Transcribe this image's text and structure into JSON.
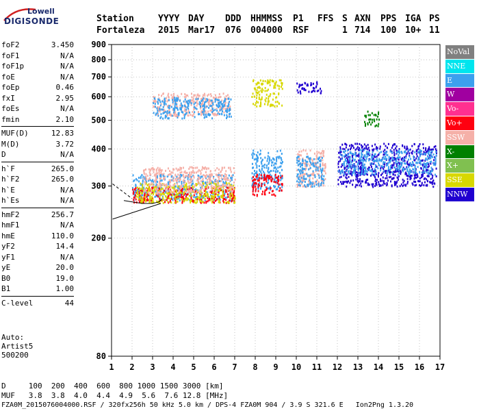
{
  "logo": {
    "line1": "Lowell",
    "line2": "DIGISONDE"
  },
  "header": {
    "labels": [
      "Station",
      "YYYY",
      "DAY",
      "DDD",
      "HHMMSS",
      "P1",
      "FFS",
      "S",
      "AXN",
      "PPS",
      "IGA",
      "PS"
    ],
    "values": [
      "Fortaleza",
      "2015",
      "Mar17",
      "076",
      "004000",
      "RSF",
      "1",
      "714",
      "100",
      "10+",
      "11"
    ]
  },
  "params_group1": [
    {
      "name": "foF2",
      "value": "3.450"
    },
    {
      "name": "foF1",
      "value": "N/A"
    },
    {
      "name": "foF1p",
      "value": "N/A"
    },
    {
      "name": "foE",
      "value": "N/A"
    },
    {
      "name": "foEp",
      "value": "0.46"
    },
    {
      "name": "fxI",
      "value": "2.95"
    },
    {
      "name": "foEs",
      "value": "N/A"
    },
    {
      "name": "fmin",
      "value": "2.10"
    }
  ],
  "params_group2": [
    {
      "name": "MUF(D)",
      "value": "12.83"
    },
    {
      "name": "M(D)",
      "value": "3.72"
    },
    {
      "name": "D",
      "value": "N/A"
    }
  ],
  "params_group3": [
    {
      "name": "h`F",
      "value": "265.0"
    },
    {
      "name": "h`F2",
      "value": "265.0"
    },
    {
      "name": "h`E",
      "value": "N/A"
    },
    {
      "name": "h`Es",
      "value": "N/A"
    }
  ],
  "params_group4": [
    {
      "name": "hmF2",
      "value": "256.7"
    },
    {
      "name": "hmF1",
      "value": "N/A"
    },
    {
      "name": "hmE",
      "value": "110.0"
    },
    {
      "name": "yF2",
      "value": "14.4"
    },
    {
      "name": "yF1",
      "value": "N/A"
    },
    {
      "name": "yE",
      "value": "20.0"
    },
    {
      "name": "B0",
      "value": "19.0"
    },
    {
      "name": "B1",
      "value": "1.00"
    }
  ],
  "params_group5": [
    {
      "name": "C-level",
      "value": "44"
    }
  ],
  "auto": {
    "line1": "Auto:",
    "line2": "Artist5",
    "line3": "500200"
  },
  "legend": [
    {
      "label": "NoVal",
      "color": "#808080"
    },
    {
      "label": "NNE",
      "color": "#00e5ee"
    },
    {
      "label": "E",
      "color": "#3ca0ee"
    },
    {
      "label": "W",
      "color": "#a000a0"
    },
    {
      "label": "Vo-",
      "color": "#ff3090"
    },
    {
      "label": "Vo+",
      "color": "#ff0010"
    },
    {
      "label": "SSW",
      "color": "#f5b0a8"
    },
    {
      "label": "X-",
      "color": "#008000"
    },
    {
      "label": "X+",
      "color": "#80c050"
    },
    {
      "label": "SSE",
      "color": "#d8d800"
    },
    {
      "label": "NNW",
      "color": "#2000d0"
    }
  ],
  "footer": {
    "d_row": "D     100  200  400  600  800 1000 1500 3000 [km]",
    "muf_row": "MUF   3.8  3.8  4.0  4.4  4.9  5.6  7.6 12.8 [MHz]",
    "file_row": "FZA0M_2015076004000.RSF / 320fx256h 50 kHz 5.0 km / DPS-4 FZA0M 904 / 3.9 S 321.6 E   Ion2Png 1.3.20"
  },
  "chart_data": {
    "type": "scatter",
    "title": "",
    "xlabel": "",
    "ylabel": "",
    "xlim": [
      1,
      17
    ],
    "ylim": [
      80,
      900
    ],
    "y_scale": "log",
    "x_ticks": [
      1,
      2,
      3,
      4,
      5,
      6,
      7,
      8,
      9,
      10,
      11,
      12,
      13,
      14,
      15,
      16,
      17
    ],
    "y_ticks": [
      80,
      200,
      300,
      400,
      500,
      600,
      700,
      800,
      900
    ],
    "grid": "dotted",
    "legend_position": "right",
    "bands": [
      {
        "series": "E",
        "x_from": 2.0,
        "x_to": 7.0,
        "y_from": 270,
        "y_to": 330
      },
      {
        "series": "Vo+",
        "x_from": 2.0,
        "x_to": 7.0,
        "y_from": 265,
        "y_to": 300
      },
      {
        "series": "SSE",
        "x_from": 2.2,
        "x_to": 7.0,
        "y_from": 265,
        "y_to": 310
      },
      {
        "series": "SSW",
        "x_from": 2.5,
        "x_to": 7.0,
        "y_from": 285,
        "y_to": 350
      },
      {
        "series": "E",
        "x_from": 7.8,
        "x_to": 9.3,
        "y_from": 290,
        "y_to": 400
      },
      {
        "series": "Vo+",
        "x_from": 7.8,
        "x_to": 9.3,
        "y_from": 280,
        "y_to": 330
      },
      {
        "series": "SSW",
        "x_from": 10.0,
        "x_to": 11.4,
        "y_from": 300,
        "y_to": 400
      },
      {
        "series": "E",
        "x_from": 10.0,
        "x_to": 11.4,
        "y_from": 300,
        "y_to": 380
      },
      {
        "series": "NNW",
        "x_from": 12.0,
        "x_to": 16.8,
        "y_from": 300,
        "y_to": 420
      },
      {
        "series": "E",
        "x_from": 12.0,
        "x_to": 16.8,
        "y_from": 330,
        "y_to": 400
      },
      {
        "series": "SSW",
        "x_from": 3.0,
        "x_to": 6.8,
        "y_from": 520,
        "y_to": 620
      },
      {
        "series": "E",
        "x_from": 3.0,
        "x_to": 6.8,
        "y_from": 510,
        "y_to": 600
      },
      {
        "series": "SSE",
        "x_from": 7.8,
        "x_to": 9.3,
        "y_from": 560,
        "y_to": 690
      },
      {
        "series": "NNW",
        "x_from": 10.0,
        "x_to": 11.2,
        "y_from": 620,
        "y_to": 680
      },
      {
        "series": "X-",
        "x_from": 13.3,
        "x_to": 14.0,
        "y_from": 480,
        "y_to": 540
      }
    ],
    "trace": {
      "name": "h`F trace",
      "x": [
        1.6,
        2.0,
        2.5,
        3.0,
        3.3,
        3.45
      ],
      "y": [
        268,
        265,
        262,
        262,
        265,
        270
      ]
    }
  }
}
